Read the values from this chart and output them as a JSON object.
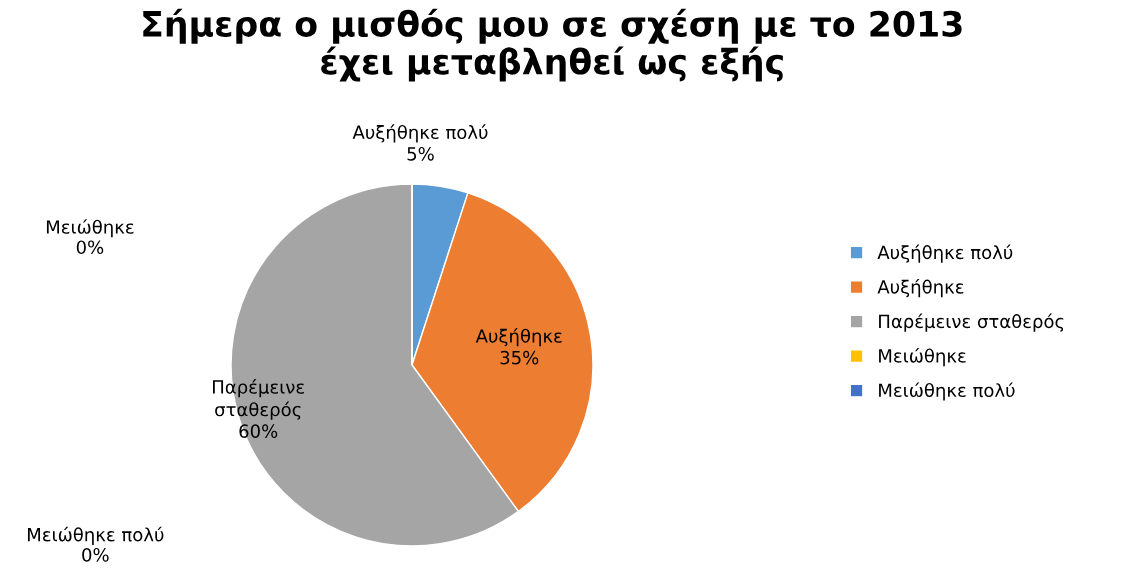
{
  "chart_data": {
    "type": "pie",
    "title": "Σήμερα ο μισθός μου σε σχέση με το 2013\nέχει μεταβληθεί ως εξής",
    "categories": [
      "Αυξήθηκε πολύ",
      "Αυξήθηκε",
      "Παρέμεινε σταθερός",
      "Μειώθηκε",
      "Μειώθηκε πολύ"
    ],
    "values": [
      5,
      35,
      60,
      0,
      0
    ],
    "colors": [
      "#5b9bd5",
      "#ed7d31",
      "#a5a5a5",
      "#ffc000",
      "#4472c4"
    ],
    "value_labels": [
      "Αυξήθηκε πολύ\n5%",
      "Αυξήθηκε\n35%",
      "Παρέμεινε\nσταθερός\n60%",
      "Μειώθηκε\n0%",
      "Μειώθηκε πολύ\n0%"
    ],
    "legend": "right"
  }
}
